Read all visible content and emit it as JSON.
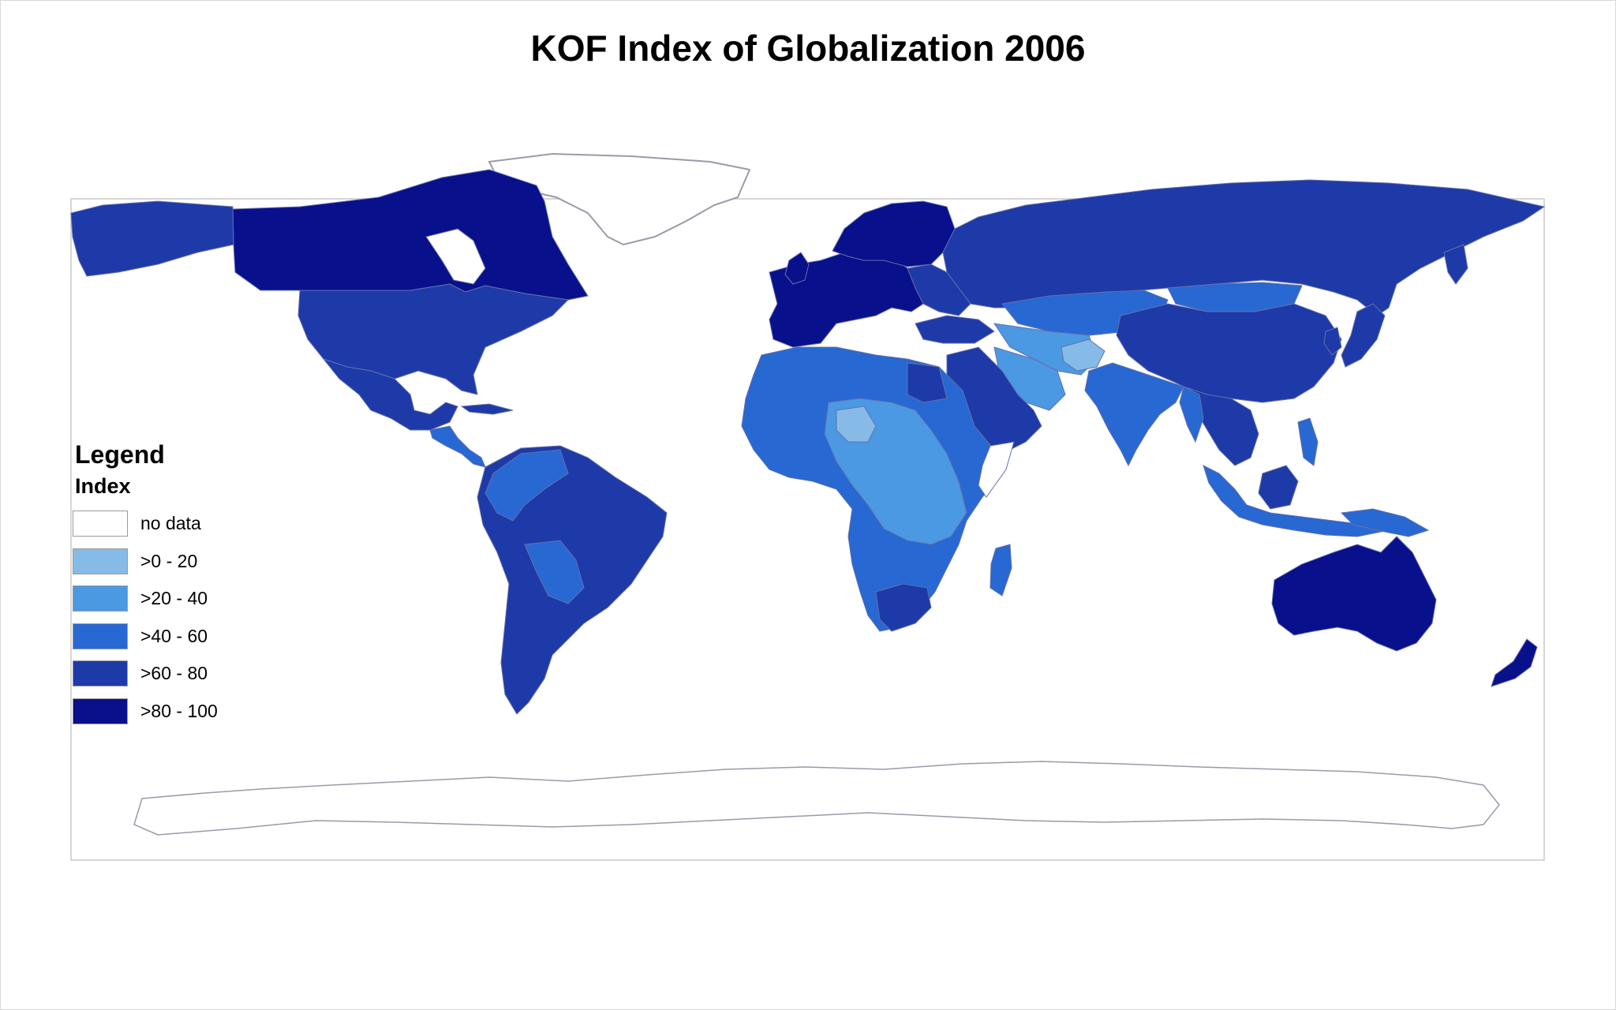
{
  "title": "KOF Index of Globalization 2006",
  "legend": {
    "title": "Legend",
    "subtitle": "Index",
    "items": [
      {
        "label": "no data",
        "color": "#ffffff"
      },
      {
        "label": ">0 - 20",
        "color": "#86bbe8"
      },
      {
        "label": ">20 - 40",
        "color": "#4b98e3"
      },
      {
        "label": ">40 - 60",
        "color": "#2768d3"
      },
      {
        "label": ">60 - 80",
        "color": "#1d3aa8"
      },
      {
        "label": ">80 - 100",
        "color": "#08108c"
      }
    ]
  },
  "map_colors": {
    "land_outline": "#9a9aa8",
    "no_data_land": "#ffffff"
  }
}
